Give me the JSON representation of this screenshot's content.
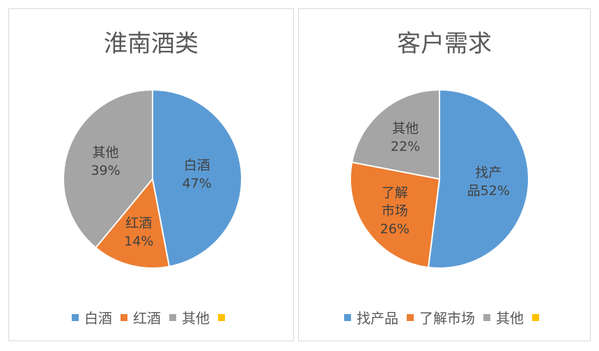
{
  "chart_data": [
    {
      "type": "pie",
      "title": "淮南酒类",
      "slices": [
        {
          "name": "白酒",
          "value": 47,
          "percent_label": "47%",
          "label_lines": [
            "白酒"
          ],
          "color": "#5B9BD5"
        },
        {
          "name": "红酒",
          "value": 14,
          "percent_label": "14%",
          "label_lines": [
            "红酒"
          ],
          "color": "#ED7D31"
        },
        {
          "name": "其他",
          "value": 39,
          "percent_label": "39%",
          "label_lines": [
            "其他"
          ],
          "color": "#A5A5A5"
        }
      ],
      "legend": [
        {
          "name": "白酒",
          "color": "#5B9BD5"
        },
        {
          "name": "红酒",
          "color": "#ED7D31"
        },
        {
          "name": "其他",
          "color": "#A5A5A5"
        },
        {
          "name": "",
          "color": "#FFC000"
        }
      ],
      "legend_position": "bottom"
    },
    {
      "type": "pie",
      "title": "客户需求",
      "slices": [
        {
          "name": "找产品",
          "value": 52,
          "percent_label": "52%",
          "label_lines": [
            "找产",
            "品52%"
          ],
          "color": "#5B9BD5"
        },
        {
          "name": "了解市场",
          "value": 26,
          "percent_label": "26%",
          "label_lines": [
            "了解",
            "市场"
          ],
          "color": "#ED7D31"
        },
        {
          "name": "其他",
          "value": 22,
          "percent_label": "22%",
          "label_lines": [
            "其他"
          ],
          "color": "#A5A5A5"
        }
      ],
      "legend": [
        {
          "name": "找产品",
          "color": "#5B9BD5"
        },
        {
          "name": "了解市场",
          "color": "#ED7D31"
        },
        {
          "name": "其他",
          "color": "#A5A5A5"
        },
        {
          "name": "",
          "color": "#FFC000"
        }
      ],
      "legend_position": "bottom"
    }
  ]
}
